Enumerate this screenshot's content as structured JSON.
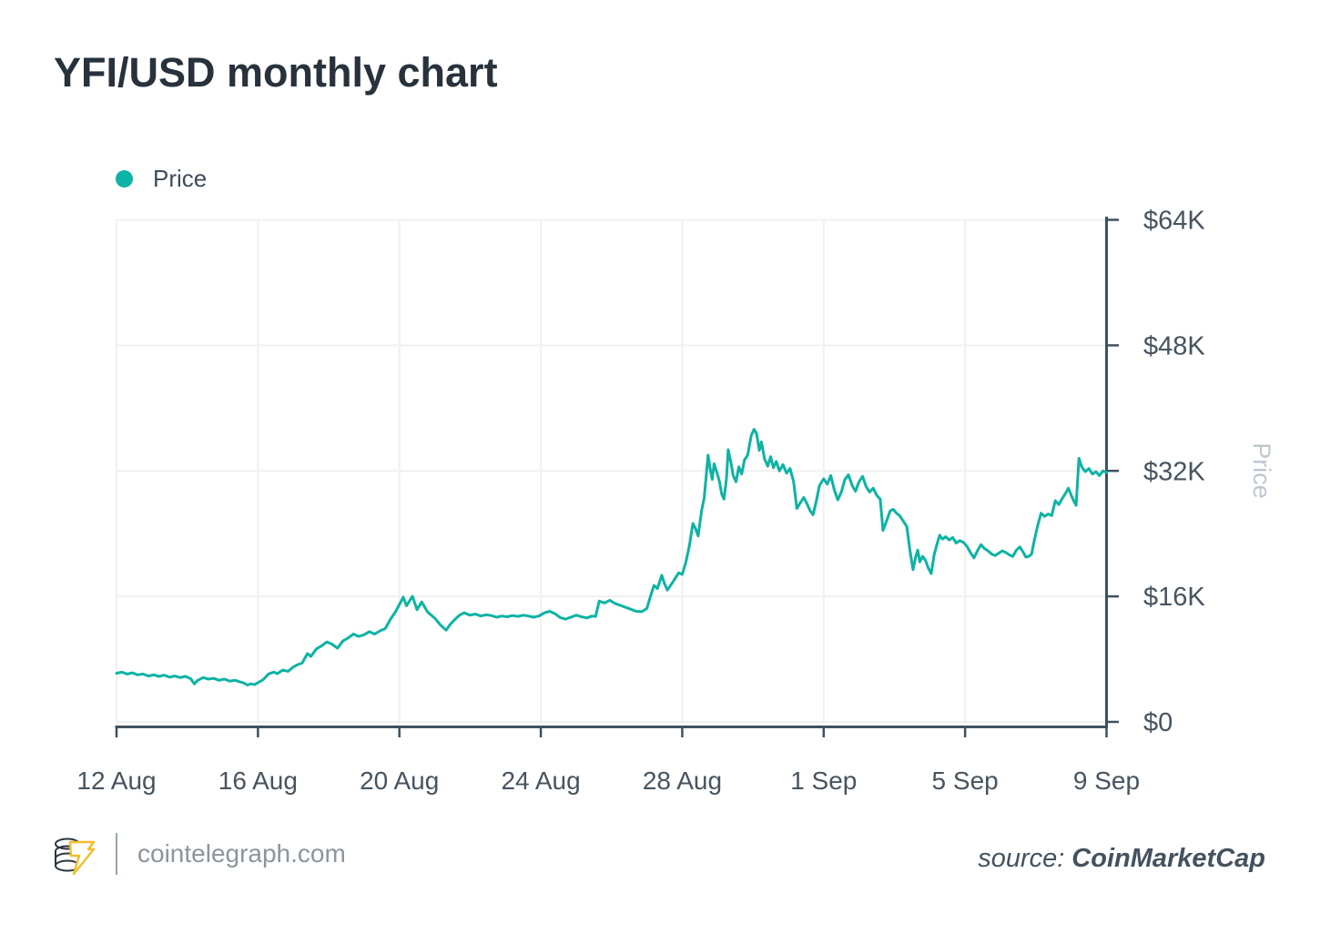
{
  "title": "YFI/USD monthly chart",
  "legend": {
    "label": "Price",
    "color": "#0db3a4"
  },
  "footer": {
    "brand_text": "cointelegraph.com",
    "source_label": "source:",
    "source_value": "CoinMarketCap"
  },
  "colors": {
    "accent_teal": "#0db3a4",
    "axis": "#40505e",
    "tick_label": "#47545f",
    "grid": "#f0f0f1",
    "axis_title": "#bcc7cf",
    "title_text": "#28323c",
    "footer_gray": "#8b959e",
    "logo_gold": "#f2bd2e"
  },
  "chart_data": {
    "type": "line",
    "title": "YFI/USD monthly chart",
    "series_name": "Price",
    "ylabel": "Price",
    "ylim": [
      0,
      64000
    ],
    "xlim_days": [
      0,
      28
    ],
    "grid": true,
    "legend_position": "top-left",
    "y_ticks": [
      {
        "value": 0,
        "label": "$0"
      },
      {
        "value": 16000,
        "label": "$16K"
      },
      {
        "value": 32000,
        "label": "$32K"
      },
      {
        "value": 48000,
        "label": "$48K"
      },
      {
        "value": 64000,
        "label": "$64K"
      }
    ],
    "x_ticks": [
      {
        "day": 0,
        "label": "12 Aug"
      },
      {
        "day": 4,
        "label": "16 Aug"
      },
      {
        "day": 8,
        "label": "20 Aug"
      },
      {
        "day": 12,
        "label": "24 Aug"
      },
      {
        "day": 16,
        "label": "28 Aug"
      },
      {
        "day": 20,
        "label": "1 Sep"
      },
      {
        "day": 24,
        "label": "5 Sep"
      },
      {
        "day": 28,
        "label": "9 Sep"
      }
    ],
    "points": [
      [
        0,
        6200
      ],
      [
        0.15,
        6350
      ],
      [
        0.3,
        6100
      ],
      [
        0.45,
        6250
      ],
      [
        0.6,
        6000
      ],
      [
        0.75,
        6100
      ],
      [
        0.9,
        5850
      ],
      [
        1.05,
        6000
      ],
      [
        1.2,
        5800
      ],
      [
        1.35,
        5950
      ],
      [
        1.5,
        5700
      ],
      [
        1.65,
        5850
      ],
      [
        1.8,
        5650
      ],
      [
        1.95,
        5800
      ],
      [
        2.1,
        5500
      ],
      [
        2.2,
        4850
      ],
      [
        2.3,
        5300
      ],
      [
        2.45,
        5650
      ],
      [
        2.6,
        5450
      ],
      [
        2.75,
        5550
      ],
      [
        2.9,
        5300
      ],
      [
        3.05,
        5450
      ],
      [
        3.2,
        5200
      ],
      [
        3.35,
        5300
      ],
      [
        3.5,
        5100
      ],
      [
        3.6,
        4950
      ],
      [
        3.7,
        4700
      ],
      [
        3.8,
        4850
      ],
      [
        3.9,
        4750
      ],
      [
        4.0,
        5000
      ],
      [
        4.15,
        5400
      ],
      [
        4.3,
        6100
      ],
      [
        4.45,
        6350
      ],
      [
        4.55,
        6150
      ],
      [
        4.7,
        6600
      ],
      [
        4.85,
        6450
      ],
      [
        5.0,
        7000
      ],
      [
        5.1,
        7250
      ],
      [
        5.25,
        7500
      ],
      [
        5.4,
        8700
      ],
      [
        5.5,
        8350
      ],
      [
        5.65,
        9300
      ],
      [
        5.8,
        9700
      ],
      [
        5.95,
        10200
      ],
      [
        6.1,
        9900
      ],
      [
        6.25,
        9400
      ],
      [
        6.4,
        10300
      ],
      [
        6.55,
        10700
      ],
      [
        6.7,
        11200
      ],
      [
        6.85,
        10900
      ],
      [
        7.0,
        11100
      ],
      [
        7.15,
        11500
      ],
      [
        7.3,
        11200
      ],
      [
        7.45,
        11600
      ],
      [
        7.6,
        11900
      ],
      [
        7.75,
        13100
      ],
      [
        7.9,
        14100
      ],
      [
        8.11,
        15900
      ],
      [
        8.2,
        14800
      ],
      [
        8.37,
        16000
      ],
      [
        8.5,
        14300
      ],
      [
        8.63,
        15300
      ],
      [
        8.8,
        14000
      ],
      [
        9.01,
        13200
      ],
      [
        9.15,
        12400
      ],
      [
        9.32,
        11700
      ],
      [
        9.45,
        12500
      ],
      [
        9.58,
        13100
      ],
      [
        9.7,
        13600
      ],
      [
        9.83,
        13900
      ],
      [
        10.0,
        13600
      ],
      [
        10.15,
        13750
      ],
      [
        10.3,
        13500
      ],
      [
        10.45,
        13650
      ],
      [
        10.6,
        13550
      ],
      [
        10.75,
        13350
      ],
      [
        10.9,
        13500
      ],
      [
        11.05,
        13400
      ],
      [
        11.2,
        13550
      ],
      [
        11.35,
        13450
      ],
      [
        11.5,
        13600
      ],
      [
        11.65,
        13500
      ],
      [
        11.8,
        13350
      ],
      [
        11.95,
        13500
      ],
      [
        12.1,
        13900
      ],
      [
        12.25,
        14100
      ],
      [
        12.4,
        13800
      ],
      [
        12.55,
        13300
      ],
      [
        12.7,
        13100
      ],
      [
        12.85,
        13350
      ],
      [
        13.0,
        13600
      ],
      [
        13.15,
        13400
      ],
      [
        13.3,
        13250
      ],
      [
        13.45,
        13500
      ],
      [
        13.55,
        13450
      ],
      [
        13.65,
        15400
      ],
      [
        13.8,
        15150
      ],
      [
        13.95,
        15500
      ],
      [
        14.1,
        15100
      ],
      [
        14.25,
        14850
      ],
      [
        14.4,
        14600
      ],
      [
        14.55,
        14350
      ],
      [
        14.7,
        14100
      ],
      [
        14.85,
        14050
      ],
      [
        15.0,
        14450
      ],
      [
        15.1,
        16000
      ],
      [
        15.2,
        17400
      ],
      [
        15.3,
        17000
      ],
      [
        15.42,
        18700
      ],
      [
        15.5,
        17600
      ],
      [
        15.58,
        16800
      ],
      [
        15.7,
        17600
      ],
      [
        15.8,
        18300
      ],
      [
        15.9,
        19000
      ],
      [
        16.0,
        18800
      ],
      [
        16.1,
        20300
      ],
      [
        16.2,
        22400
      ],
      [
        16.3,
        25300
      ],
      [
        16.38,
        24600
      ],
      [
        16.45,
        23700
      ],
      [
        16.55,
        27000
      ],
      [
        16.62,
        28500
      ],
      [
        16.68,
        31400
      ],
      [
        16.73,
        34000
      ],
      [
        16.8,
        32000
      ],
      [
        16.85,
        30900
      ],
      [
        16.9,
        32900
      ],
      [
        17.0,
        31500
      ],
      [
        17.05,
        30700
      ],
      [
        17.12,
        29000
      ],
      [
        17.18,
        28400
      ],
      [
        17.25,
        31000
      ],
      [
        17.3,
        34700
      ],
      [
        17.38,
        33000
      ],
      [
        17.44,
        31400
      ],
      [
        17.52,
        30600
      ],
      [
        17.6,
        32500
      ],
      [
        17.68,
        31600
      ],
      [
        17.76,
        33400
      ],
      [
        17.85,
        34000
      ],
      [
        17.95,
        36500
      ],
      [
        18.03,
        37300
      ],
      [
        18.1,
        36800
      ],
      [
        18.18,
        34600
      ],
      [
        18.24,
        35700
      ],
      [
        18.33,
        33500
      ],
      [
        18.42,
        32600
      ],
      [
        18.5,
        33800
      ],
      [
        18.58,
        32400
      ],
      [
        18.66,
        33200
      ],
      [
        18.75,
        32000
      ],
      [
        18.85,
        32800
      ],
      [
        18.95,
        31700
      ],
      [
        19.05,
        32300
      ],
      [
        19.15,
        30600
      ],
      [
        19.24,
        27200
      ],
      [
        19.35,
        28000
      ],
      [
        19.44,
        28600
      ],
      [
        19.52,
        27900
      ],
      [
        19.62,
        26900
      ],
      [
        19.7,
        26400
      ],
      [
        19.8,
        28300
      ],
      [
        19.88,
        30100
      ],
      [
        20.0,
        31000
      ],
      [
        20.1,
        30300
      ],
      [
        20.2,
        31400
      ],
      [
        20.3,
        29600
      ],
      [
        20.4,
        28300
      ],
      [
        20.5,
        29300
      ],
      [
        20.6,
        30900
      ],
      [
        20.7,
        31500
      ],
      [
        20.8,
        30200
      ],
      [
        20.9,
        29400
      ],
      [
        21.0,
        30600
      ],
      [
        21.1,
        31300
      ],
      [
        21.2,
        30000
      ],
      [
        21.3,
        29300
      ],
      [
        21.4,
        29800
      ],
      [
        21.5,
        28900
      ],
      [
        21.6,
        28400
      ],
      [
        21.68,
        24400
      ],
      [
        21.78,
        25600
      ],
      [
        21.88,
        26900
      ],
      [
        21.97,
        27100
      ],
      [
        22.06,
        26600
      ],
      [
        22.15,
        26300
      ],
      [
        22.25,
        25600
      ],
      [
        22.35,
        24900
      ],
      [
        22.45,
        21600
      ],
      [
        22.53,
        19400
      ],
      [
        22.6,
        21000
      ],
      [
        22.66,
        21900
      ],
      [
        22.72,
        20400
      ],
      [
        22.8,
        21100
      ],
      [
        22.88,
        20600
      ],
      [
        22.96,
        19600
      ],
      [
        23.04,
        18900
      ],
      [
        23.12,
        21200
      ],
      [
        23.2,
        22600
      ],
      [
        23.28,
        23800
      ],
      [
        23.36,
        23300
      ],
      [
        23.45,
        23600
      ],
      [
        23.55,
        23200
      ],
      [
        23.65,
        23500
      ],
      [
        23.75,
        22800
      ],
      [
        23.85,
        23100
      ],
      [
        23.95,
        22900
      ],
      [
        24.05,
        22400
      ],
      [
        24.15,
        21600
      ],
      [
        24.25,
        20900
      ],
      [
        24.35,
        21800
      ],
      [
        24.45,
        22600
      ],
      [
        24.55,
        22100
      ],
      [
        24.65,
        21800
      ],
      [
        24.75,
        21400
      ],
      [
        24.85,
        21200
      ],
      [
        24.95,
        21500
      ],
      [
        25.05,
        21800
      ],
      [
        25.15,
        21600
      ],
      [
        25.25,
        21300
      ],
      [
        25.35,
        21100
      ],
      [
        25.45,
        21900
      ],
      [
        25.55,
        22300
      ],
      [
        25.65,
        21600
      ],
      [
        25.72,
        21000
      ],
      [
        25.8,
        21100
      ],
      [
        25.88,
        21400
      ],
      [
        25.95,
        23000
      ],
      [
        26.05,
        25000
      ],
      [
        26.15,
        26600
      ],
      [
        26.25,
        26200
      ],
      [
        26.35,
        26500
      ],
      [
        26.45,
        26300
      ],
      [
        26.55,
        28200
      ],
      [
        26.65,
        27700
      ],
      [
        26.75,
        28500
      ],
      [
        26.85,
        29200
      ],
      [
        26.92,
        29800
      ],
      [
        27.0,
        28900
      ],
      [
        27.07,
        28200
      ],
      [
        27.14,
        27600
      ],
      [
        27.22,
        33600
      ],
      [
        27.3,
        32500
      ],
      [
        27.4,
        31900
      ],
      [
        27.5,
        32300
      ],
      [
        27.6,
        31600
      ],
      [
        27.7,
        31900
      ],
      [
        27.8,
        31400
      ],
      [
        27.9,
        32000
      ],
      [
        28.0,
        31800
      ]
    ],
    "line_color": "#0db3a4"
  }
}
